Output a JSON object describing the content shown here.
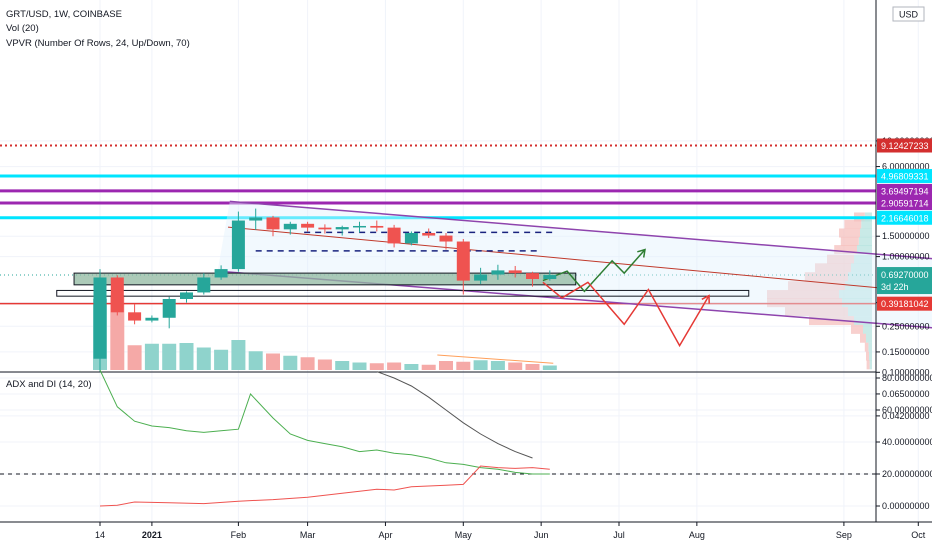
{
  "header": {
    "symbol_line": "GRT/USD, 1W, COINBASE",
    "volume_label": "Vol (20)",
    "vpvr_label": "VPVR (Number Of Rows, 24, Up/Down, 70)",
    "currency": "USD"
  },
  "indicator": {
    "label": "ADX and DI (14, 20)"
  },
  "price_axis": {
    "ticks": [
      {
        "value": 10,
        "label": "10.00000000"
      },
      {
        "value": 6,
        "label": "6.00000000"
      },
      {
        "value": 1.5,
        "label": "1.50000000"
      },
      {
        "value": 1.0,
        "label": "1.00000000"
      },
      {
        "value": 0.4,
        "label": "0.40000000"
      },
      {
        "value": 0.25,
        "label": "0.25000000"
      },
      {
        "value": 0.15,
        "label": "0.15000000"
      },
      {
        "value": 0.1,
        "label": "0.10000000"
      },
      {
        "value": 0.065,
        "label": "0.06500000"
      },
      {
        "value": 0.042,
        "label": "0.04200000"
      }
    ]
  },
  "level_tags": [
    {
      "value": 9.12427233,
      "label": "9.12427233",
      "color": "#d32f2f",
      "style": "dotted"
    },
    {
      "value": 4.96809331,
      "label": "4.96809331",
      "color": "#00e5ff",
      "style": "solid"
    },
    {
      "value": 3.69497194,
      "label": "3.69497194",
      "color": "#9c27b0",
      "style": "solid"
    },
    {
      "value": 2.90591714,
      "label": "2.90591714",
      "color": "#9c27b0",
      "style": "solid"
    },
    {
      "value": 2.16646018,
      "label": "2.16646018",
      "color": "#00e5ff",
      "style": "solid"
    },
    {
      "value": 0.39181042,
      "label": "0.39181042",
      "color": "#e53935",
      "style": "solid"
    }
  ],
  "last_price": {
    "value": 0.6927,
    "label": "0.69270000",
    "countdown": "3d 22h",
    "color": "#26a69a"
  },
  "adx_axis": {
    "ticks": [
      {
        "value": 80,
        "label": "80.00000000"
      },
      {
        "value": 60,
        "label": "60.00000000"
      },
      {
        "value": 40,
        "label": "40.00000000"
      },
      {
        "value": 20,
        "label": "20.00000000"
      },
      {
        "value": 0,
        "label": "0.00000000"
      }
    ]
  },
  "time_axis": {
    "ticks": [
      {
        "week": 0,
        "label": "14"
      },
      {
        "week": 3,
        "label": "2021"
      },
      {
        "week": 8,
        "label": "Feb"
      },
      {
        "week": 12,
        "label": "Mar"
      },
      {
        "week": 16.5,
        "label": "Apr"
      },
      {
        "week": 21,
        "label": "May"
      },
      {
        "week": 25.5,
        "label": "Jun"
      },
      {
        "week": 30,
        "label": "Jul"
      },
      {
        "week": 34.5,
        "label": "Aug"
      },
      {
        "week": 43,
        "label": "Sep"
      },
      {
        "week": 47.3,
        "label": "Oct"
      }
    ]
  },
  "chart_data": {
    "type": "candlestick",
    "title": "GRT/USD, 1W, COINBASE",
    "x_unit": "weeks from Dec 14 2020",
    "y_scale": "log",
    "colors": {
      "up": "#26a69a",
      "down": "#ef5350",
      "volume_up": "#8fd3cc",
      "volume_down": "#f5a9a7"
    },
    "candles": [
      {
        "week": 0,
        "open": 0.131,
        "high": 0.78,
        "low": 0.1,
        "close": 0.66
      },
      {
        "week": 1,
        "open": 0.66,
        "high": 0.69,
        "low": 0.31,
        "close": 0.33
      },
      {
        "week": 2,
        "open": 0.33,
        "high": 0.39,
        "low": 0.26,
        "close": 0.28
      },
      {
        "week": 3,
        "open": 0.28,
        "high": 0.31,
        "low": 0.27,
        "close": 0.296
      },
      {
        "week": 4,
        "open": 0.296,
        "high": 0.45,
        "low": 0.24,
        "close": 0.43
      },
      {
        "week": 5,
        "open": 0.43,
        "high": 0.5,
        "low": 0.4,
        "close": 0.49
      },
      {
        "week": 6,
        "open": 0.49,
        "high": 0.72,
        "low": 0.47,
        "close": 0.66
      },
      {
        "week": 7,
        "open": 0.66,
        "high": 0.84,
        "low": 0.63,
        "close": 0.78
      },
      {
        "week": 8,
        "open": 0.78,
        "high": 2.45,
        "low": 0.74,
        "close": 2.05
      },
      {
        "week": 9,
        "open": 2.05,
        "high": 2.6,
        "low": 1.7,
        "close": 2.18
      },
      {
        "week": 10,
        "open": 2.18,
        "high": 2.25,
        "low": 1.5,
        "close": 1.72
      },
      {
        "week": 11,
        "open": 1.72,
        "high": 2.0,
        "low": 1.55,
        "close": 1.92
      },
      {
        "week": 12,
        "open": 1.92,
        "high": 2.0,
        "low": 1.65,
        "close": 1.78
      },
      {
        "week": 13,
        "open": 1.78,
        "high": 1.9,
        "low": 1.58,
        "close": 1.72
      },
      {
        "week": 14,
        "open": 1.72,
        "high": 1.85,
        "low": 1.52,
        "close": 1.8
      },
      {
        "week": 15,
        "open": 1.8,
        "high": 2.0,
        "low": 1.62,
        "close": 1.84
      },
      {
        "week": 16,
        "open": 1.84,
        "high": 2.05,
        "low": 1.65,
        "close": 1.78
      },
      {
        "week": 17,
        "open": 1.78,
        "high": 1.88,
        "low": 1.2,
        "close": 1.3
      },
      {
        "week": 18,
        "open": 1.3,
        "high": 1.65,
        "low": 1.25,
        "close": 1.6
      },
      {
        "week": 19,
        "open": 1.6,
        "high": 1.75,
        "low": 1.45,
        "close": 1.52
      },
      {
        "week": 20,
        "open": 1.52,
        "high": 1.6,
        "low": 1.15,
        "close": 1.35
      },
      {
        "week": 21,
        "open": 1.35,
        "high": 1.42,
        "low": 0.47,
        "close": 0.62
      },
      {
        "week": 22,
        "open": 0.62,
        "high": 0.8,
        "low": 0.58,
        "close": 0.7
      },
      {
        "week": 23,
        "open": 0.7,
        "high": 0.85,
        "low": 0.63,
        "close": 0.76
      },
      {
        "week": 24,
        "open": 0.76,
        "high": 0.83,
        "low": 0.66,
        "close": 0.72
      },
      {
        "week": 25,
        "open": 0.72,
        "high": 0.74,
        "low": 0.55,
        "close": 0.64
      },
      {
        "week": 26,
        "open": 0.64,
        "high": 0.76,
        "low": 0.62,
        "close": 0.6927
      }
    ],
    "volume": [
      {
        "week": 0,
        "value": 0.95
      },
      {
        "week": 1,
        "value": 1.0
      },
      {
        "week": 2,
        "value": 0.33
      },
      {
        "week": 3,
        "value": 0.35
      },
      {
        "week": 4,
        "value": 0.35
      },
      {
        "week": 5,
        "value": 0.36
      },
      {
        "week": 6,
        "value": 0.3
      },
      {
        "week": 7,
        "value": 0.27
      },
      {
        "week": 8,
        "value": 0.4
      },
      {
        "week": 9,
        "value": 0.25
      },
      {
        "week": 10,
        "value": 0.22
      },
      {
        "week": 11,
        "value": 0.19
      },
      {
        "week": 12,
        "value": 0.17
      },
      {
        "week": 13,
        "value": 0.14
      },
      {
        "week": 14,
        "value": 0.12
      },
      {
        "week": 15,
        "value": 0.1
      },
      {
        "week": 16,
        "value": 0.09
      },
      {
        "week": 17,
        "value": 0.1
      },
      {
        "week": 18,
        "value": 0.08
      },
      {
        "week": 19,
        "value": 0.07
      },
      {
        "week": 20,
        "value": 0.12
      },
      {
        "week": 21,
        "value": 0.11
      },
      {
        "week": 22,
        "value": 0.13
      },
      {
        "week": 23,
        "value": 0.12
      },
      {
        "week": 24,
        "value": 0.1
      },
      {
        "week": 25,
        "value": 0.08
      },
      {
        "week": 26,
        "value": 0.06
      }
    ],
    "adx_green": [
      {
        "week": 0,
        "value": 85
      },
      {
        "week": 1,
        "value": 62
      },
      {
        "week": 2,
        "value": 53
      },
      {
        "week": 3,
        "value": 50
      },
      {
        "week": 4,
        "value": 49
      },
      {
        "week": 5,
        "value": 47
      },
      {
        "week": 6,
        "value": 46
      },
      {
        "week": 7,
        "value": 47
      },
      {
        "week": 8,
        "value": 48
      },
      {
        "week": 8.7,
        "value": 70
      },
      {
        "week": 10,
        "value": 55
      },
      {
        "week": 11,
        "value": 45
      },
      {
        "week": 12,
        "value": 41
      },
      {
        "week": 13,
        "value": 39
      },
      {
        "week": 14,
        "value": 37
      },
      {
        "week": 15,
        "value": 34
      },
      {
        "week": 16,
        "value": 35
      },
      {
        "week": 17,
        "value": 33
      },
      {
        "week": 18,
        "value": 32
      },
      {
        "week": 19,
        "value": 30
      },
      {
        "week": 20,
        "value": 27
      },
      {
        "week": 21,
        "value": 26
      },
      {
        "week": 22,
        "value": 24
      },
      {
        "week": 23,
        "value": 23
      },
      {
        "week": 24,
        "value": 21
      },
      {
        "week": 25,
        "value": 20
      },
      {
        "week": 26,
        "value": 20
      }
    ],
    "adx_red": [
      {
        "week": 0,
        "value": 0
      },
      {
        "week": 1,
        "value": 0.5
      },
      {
        "week": 2,
        "value": 2.5
      },
      {
        "week": 4,
        "value": 2
      },
      {
        "week": 6,
        "value": 1.5
      },
      {
        "week": 8,
        "value": 3
      },
      {
        "week": 10,
        "value": 4
      },
      {
        "week": 12,
        "value": 5.5
      },
      {
        "week": 14,
        "value": 8
      },
      {
        "week": 16,
        "value": 10.5
      },
      {
        "week": 17,
        "value": 10
      },
      {
        "week": 18,
        "value": 12
      },
      {
        "week": 20,
        "value": 13
      },
      {
        "week": 21,
        "value": 13.5
      },
      {
        "week": 22,
        "value": 25
      },
      {
        "week": 23,
        "value": 24
      },
      {
        "week": 24,
        "value": 23.5
      },
      {
        "week": 25,
        "value": 24
      },
      {
        "week": 26,
        "value": 23
      }
    ],
    "adx_gray": [
      {
        "week": 16,
        "value": 84
      },
      {
        "week": 17,
        "value": 80
      },
      {
        "week": 18,
        "value": 75
      },
      {
        "week": 19,
        "value": 68
      },
      {
        "week": 20,
        "value": 60
      },
      {
        "week": 21,
        "value": 52
      },
      {
        "week": 22,
        "value": 45
      },
      {
        "week": 23,
        "value": 39
      },
      {
        "week": 24,
        "value": 34
      },
      {
        "week": 25,
        "value": 30
      }
    ],
    "adx_threshold": 20,
    "drawings": {
      "channel_upper": [
        {
          "week": 7.5,
          "price": 3.0
        },
        {
          "week": 48.5,
          "price": 0.95
        }
      ],
      "channel_lower": [
        {
          "week": 6.8,
          "price": 0.75
        },
        {
          "week": 48.5,
          "price": 0.24
        }
      ],
      "channel_mid": [
        {
          "week": 7.4,
          "price": 1.8
        },
        {
          "week": 48.5,
          "price": 0.48
        }
      ],
      "support_zone_dark": {
        "week_start": -1.5,
        "week_end": 27.5,
        "price_low": 0.57,
        "price_high": 0.72
      },
      "support_zone_outline": {
        "week_start": -2.5,
        "week_end": 37.5,
        "price_low": 0.455,
        "price_high": 0.51
      },
      "dashed_levels": [
        {
          "week_start": 11.8,
          "week_end": 26.3,
          "price": 1.62
        },
        {
          "week_start": 9,
          "week_end": 25.5,
          "price": 1.12
        }
      ],
      "bullish_path": [
        {
          "week": 25.6,
          "price": 0.62
        },
        {
          "week": 27,
          "price": 0.75
        },
        {
          "week": 28,
          "price": 0.5
        },
        {
          "week": 29.6,
          "price": 0.92
        },
        {
          "week": 30.3,
          "price": 0.72
        },
        {
          "week": 31.5,
          "price": 1.15
        }
      ],
      "bearish_path": [
        {
          "week": 25.6,
          "price": 0.6
        },
        {
          "week": 26.7,
          "price": 0.44
        },
        {
          "week": 28.2,
          "price": 0.6
        },
        {
          "week": 30.3,
          "price": 0.26
        },
        {
          "week": 31.7,
          "price": 0.52
        },
        {
          "week": 33.5,
          "price": 0.17
        },
        {
          "week": 35.2,
          "price": 0.46
        }
      ],
      "volume_trend": [
        {
          "week": 19.5,
          "value": 0.2
        },
        {
          "week": 26.2,
          "value": 0.09
        }
      ]
    },
    "vpvr": [
      {
        "price": 2.2,
        "up": 0.12,
        "down": 0.18
      },
      {
        "price": 1.9,
        "up": 0.18,
        "down": 0.28
      },
      {
        "price": 1.6,
        "up": 0.2,
        "down": 0.35
      },
      {
        "price": 1.35,
        "up": 0.22,
        "down": 0.3
      },
      {
        "price": 1.15,
        "up": 0.25,
        "down": 0.38
      },
      {
        "price": 0.95,
        "up": 0.3,
        "down": 0.45
      },
      {
        "price": 0.8,
        "up": 0.35,
        "down": 0.6
      },
      {
        "price": 0.67,
        "up": 0.4,
        "down": 0.72
      },
      {
        "price": 0.56,
        "up": 0.45,
        "down": 0.95
      },
      {
        "price": 0.47,
        "up": 0.55,
        "down": 1.2
      },
      {
        "price": 0.4,
        "up": 0.5,
        "down": 1.25
      },
      {
        "price": 0.335,
        "up": 0.4,
        "down": 1.05
      },
      {
        "price": 0.28,
        "up": 0.3,
        "down": 0.75
      },
      {
        "price": 0.235,
        "up": 0.15,
        "down": 0.2
      },
      {
        "price": 0.197,
        "up": 0.1,
        "down": 0.1
      },
      {
        "price": 0.165,
        "up": 0.06,
        "down": 0.06
      },
      {
        "price": 0.138,
        "up": 0.05,
        "down": 0.05
      },
      {
        "price": 0.116,
        "up": 0.04,
        "down": 0.05
      }
    ]
  }
}
